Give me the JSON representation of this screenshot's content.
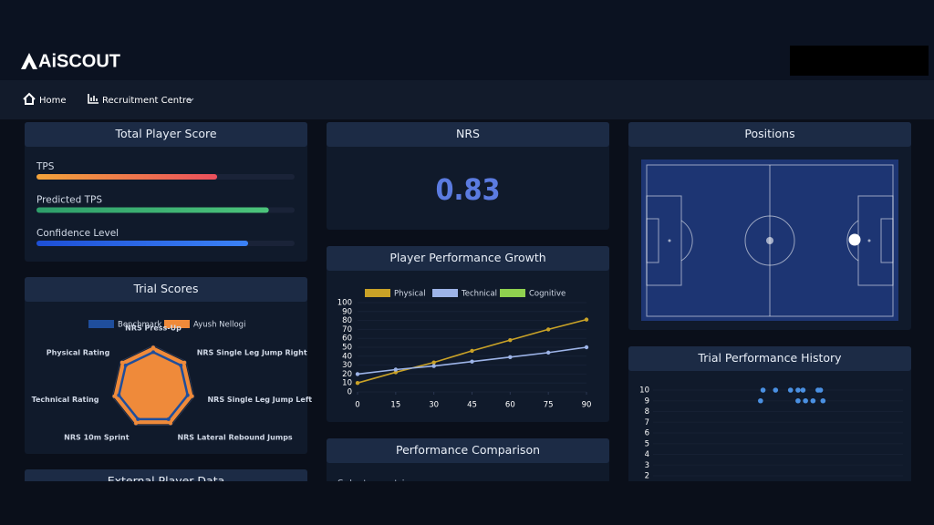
{
  "header": {
    "logo": "AiSCOUT"
  },
  "nav": {
    "items": [
      "Home",
      "Recruitment Centre"
    ]
  },
  "total_player_score": {
    "title": "Total Player Score",
    "xlim": [
      0,
      100
    ],
    "bars": [
      {
        "label": "TPS",
        "value": 70,
        "color": [
          "#f2a33a",
          "#ea4f5c"
        ]
      },
      {
        "label": "Predicted TPS",
        "value": 90,
        "color": [
          "#2e9e6a",
          "#4cc47b"
        ]
      },
      {
        "label": "Confidence Level",
        "value": 82,
        "color": [
          "#1d4fd6",
          "#3b82f6"
        ]
      }
    ]
  },
  "nrs": {
    "title": "NRS",
    "value": 0.83
  },
  "positions": {
    "title": "Positions"
  },
  "trial_scores": {
    "title": "Trial Scores",
    "type": "radar",
    "categories": [
      "NRS Press-Up",
      "NRS Single Leg Jump Right",
      "NRS Single Leg Jump Left",
      "NRS Lateral Rebound Jumps",
      "NRS 10m Sprint",
      "Technical Rating",
      "Physical Rating"
    ],
    "rlim": [
      0,
      100
    ],
    "series": [
      {
        "name": "Benchmark",
        "color": "#1f4e9c",
        "values": [
          84,
          84,
          84,
          84,
          84,
          84,
          84
        ]
      },
      {
        "name": "Ayush Nellogi",
        "color": "#ef8a3a",
        "values": [
          95,
          95,
          95,
          95,
          95,
          95,
          95
        ]
      }
    ]
  },
  "growth": {
    "title": "Player Performance Growth",
    "type": "line",
    "x": [
      0,
      15,
      30,
      45,
      60,
      75,
      90
    ],
    "xlim": [
      0,
      90
    ],
    "xticks": [
      0,
      15,
      30,
      45,
      60,
      75,
      90
    ],
    "ylim": [
      0,
      100
    ],
    "yticks": [
      0,
      10,
      20,
      30,
      40,
      50,
      60,
      70,
      80,
      90,
      100
    ],
    "series": [
      {
        "name": "Physical",
        "color": "#c9a227",
        "values": [
          10,
          22,
          33,
          46,
          58,
          70,
          81
        ]
      },
      {
        "name": "Technical",
        "color": "#9db4e8",
        "values": [
          20,
          25,
          29,
          34,
          39,
          44,
          50
        ]
      },
      {
        "name": "Cognitive",
        "color": "#8fd14f",
        "values": [
          null,
          null,
          null,
          null,
          null,
          null,
          null
        ]
      }
    ]
  },
  "history": {
    "title": "Trial Performance History",
    "type": "scatter",
    "xlim": [
      0,
      100
    ],
    "ylim": [
      0,
      10.5
    ],
    "yticks": [
      2,
      3,
      4,
      5,
      6,
      7,
      8,
      9,
      10
    ],
    "series": [
      {
        "color": "#4a90e2",
        "x": [
          44,
          49,
          55,
          58,
          60,
          66,
          67,
          43,
          58,
          61,
          64,
          68
        ],
        "values": [
          10,
          10,
          10,
          10,
          10,
          10,
          10,
          9,
          9,
          9,
          9,
          9
        ]
      }
    ]
  },
  "comparison": {
    "title": "Performance Comparison",
    "placeholder": "Select a metric"
  },
  "external": {
    "title": "External Player Data"
  }
}
